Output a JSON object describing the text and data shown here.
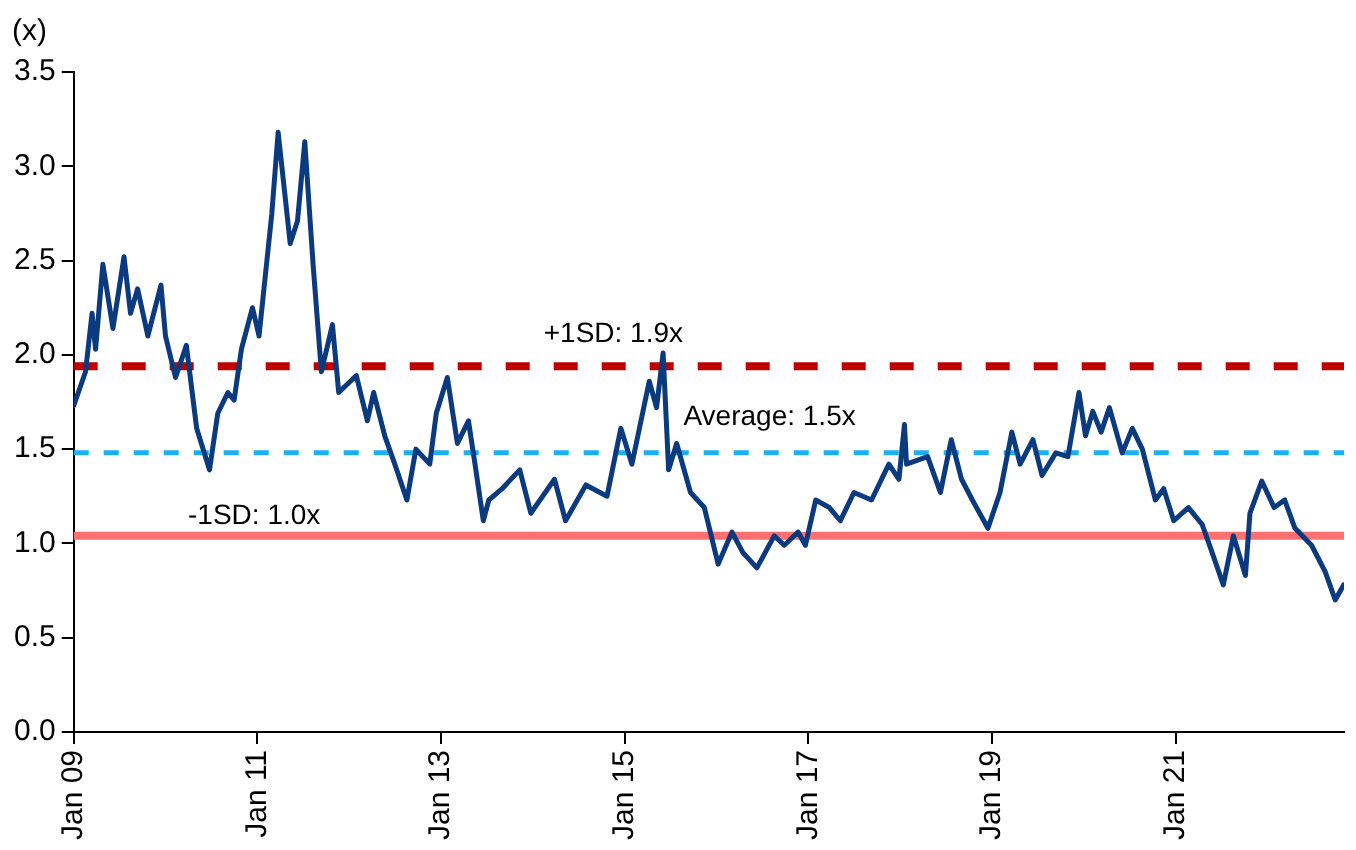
{
  "chart_data": {
    "type": "line",
    "ylabel": "(x)",
    "x": [
      "2009-01-01",
      "2009-02-17",
      "2009-03-15",
      "2009-03-29",
      "2009-04-27",
      "2009-06-06",
      "2009-07-20",
      "2009-08-15",
      "2009-09-12",
      "2009-10-23",
      "2009-12-14",
      "2010-01-01",
      "2010-02-10",
      "2010-03-25",
      "2010-05-05",
      "2010-06-25",
      "2010-07-28",
      "2010-09-06",
      "2010-10-01",
      "2010-10-30",
      "2010-12-13",
      "2011-01-08",
      "2011-02-28",
      "2011-03-25",
      "2011-05-12",
      "2011-06-10",
      "2011-07-09",
      "2011-08-11",
      "2011-09-13",
      "2011-10-27",
      "2011-11-21",
      "2012-01-30",
      "2012-03-14",
      "2012-04-08",
      "2012-05-22",
      "2012-07-01",
      "2012-08-18",
      "2012-09-23",
      "2012-11-17",
      "2012-12-13",
      "2013-01-26",
      "2013-03-07",
      "2013-04-20",
      "2013-05-16",
      "2013-06-18",
      "2013-07-10",
      "2013-09-01",
      "2013-11-10",
      "2013-12-24",
      "2014-03-28",
      "2014-05-11",
      "2014-07-31",
      "2014-10-23",
      "2014-12-17",
      "2015-01-30",
      "2015-04-09",
      "2015-05-08",
      "2015-06-03",
      "2015-06-25",
      "2015-07-27",
      "2015-09-20",
      "2015-11-14",
      "2016-01-08",
      "2016-03-03",
      "2016-04-16",
      "2016-06-10",
      "2016-08-18",
      "2016-09-27",
      "2016-11-21",
      "2016-12-20",
      "2017-01-30",
      "2017-03-25",
      "2017-05-08",
      "2017-07-01",
      "2017-09-09",
      "2017-11-17",
      "2017-12-27",
      "2018-01-18",
      "2018-01-26",
      "2018-04-20",
      "2018-06-10",
      "2018-07-23",
      "2018-09-02",
      "2018-10-15",
      "2018-12-16",
      "2019-02-02",
      "2019-03-21",
      "2019-04-23",
      "2019-06-13",
      "2019-07-19",
      "2019-09-12",
      "2019-10-30",
      "2019-12-13",
      "2020-01-08",
      "2020-02-06",
      "2020-03-10",
      "2020-04-12",
      "2020-06-02",
      "2020-07-12",
      "2020-08-21",
      "2020-10-12",
      "2020-11-14",
      "2020-12-24",
      "2021-02-20",
      "2021-04-16",
      "2021-05-26",
      "2021-07-09",
      "2021-08-18",
      "2021-10-05",
      "2021-10-23",
      "2021-12-09",
      "2022-01-27",
      "2022-03-10",
      "2022-04-20",
      "2022-06-25",
      "2022-08-18",
      "2022-09-27",
      "2022-10-31"
    ],
    "series": [
      {
        "color": "#0b3a7e",
        "values": [
          1.73,
          1.91,
          2.22,
          2.03,
          2.48,
          2.14,
          2.52,
          2.22,
          2.35,
          2.1,
          2.37,
          2.1,
          1.88,
          2.05,
          1.61,
          1.39,
          1.69,
          1.8,
          1.76,
          2.03,
          2.25,
          2.1,
          2.75,
          3.18,
          2.59,
          2.71,
          3.13,
          2.48,
          1.91,
          2.16,
          1.8,
          1.89,
          1.65,
          1.8,
          1.57,
          1.42,
          1.23,
          1.5,
          1.42,
          1.69,
          1.88,
          1.53,
          1.65,
          1.42,
          1.12,
          1.23,
          1.29,
          1.39,
          1.16,
          1.34,
          1.12,
          1.31,
          1.25,
          1.61,
          1.42,
          1.86,
          1.72,
          2.01,
          1.39,
          1.53,
          1.27,
          1.19,
          0.89,
          1.06,
          0.95,
          0.87,
          1.04,
          0.99,
          1.06,
          0.99,
          1.23,
          1.19,
          1.12,
          1.27,
          1.23,
          1.42,
          1.34,
          1.63,
          1.42,
          1.46,
          1.27,
          1.55,
          1.34,
          1.23,
          1.08,
          1.27,
          1.59,
          1.42,
          1.55,
          1.36,
          1.48,
          1.46,
          1.8,
          1.57,
          1.7,
          1.59,
          1.72,
          1.48,
          1.61,
          1.5,
          1.23,
          1.29,
          1.12,
          1.19,
          1.1,
          0.95,
          0.78,
          1.04,
          0.83,
          1.16,
          1.33,
          1.19,
          1.23,
          1.08,
          0.99,
          0.85,
          0.7,
          0.78
        ]
      }
    ],
    "xlim": [
      "2009-01-01",
      "2022-11-01"
    ],
    "xticks": [
      {
        "value": "2009-01-01",
        "label": "Jan 09"
      },
      {
        "value": "2011-01-01",
        "label": "Jan 11"
      },
      {
        "value": "2013-01-01",
        "label": "Jan 13"
      },
      {
        "value": "2015-01-01",
        "label": "Jan 15"
      },
      {
        "value": "2017-01-01",
        "label": "Jan 17"
      },
      {
        "value": "2019-01-01",
        "label": "Jan 19"
      },
      {
        "value": "2021-01-01",
        "label": "Jan 21"
      }
    ],
    "ylim": [
      0,
      3.5
    ],
    "yticks": [
      {
        "value": 0,
        "label": "0.0"
      },
      {
        "value": 0.5,
        "label": "0.5"
      },
      {
        "value": 1,
        "label": "1.0"
      },
      {
        "value": 1.5,
        "label": "1.5"
      },
      {
        "value": 2,
        "label": "2.0"
      },
      {
        "value": 2.5,
        "label": "2.5"
      },
      {
        "value": 3,
        "label": "3.0"
      },
      {
        "value": 3.5,
        "label": "3.5"
      }
    ],
    "ref_lines": [
      {
        "axis": "y",
        "value": 1.94,
        "label": "+1SD: 1.9x",
        "color": "#c00000",
        "line_style": "dashed"
      },
      {
        "axis": "y",
        "value": 1.48,
        "label": "Average: 1.5x",
        "color": "#1cb0f0",
        "line_style": "dashed"
      },
      {
        "axis": "y",
        "value": 1.04,
        "label": "-1SD: 1.0x",
        "color": "#ff7070",
        "line_style": "solid"
      }
    ],
    "grid": false,
    "legend": false,
    "marker": "none",
    "line_style": "solid"
  }
}
